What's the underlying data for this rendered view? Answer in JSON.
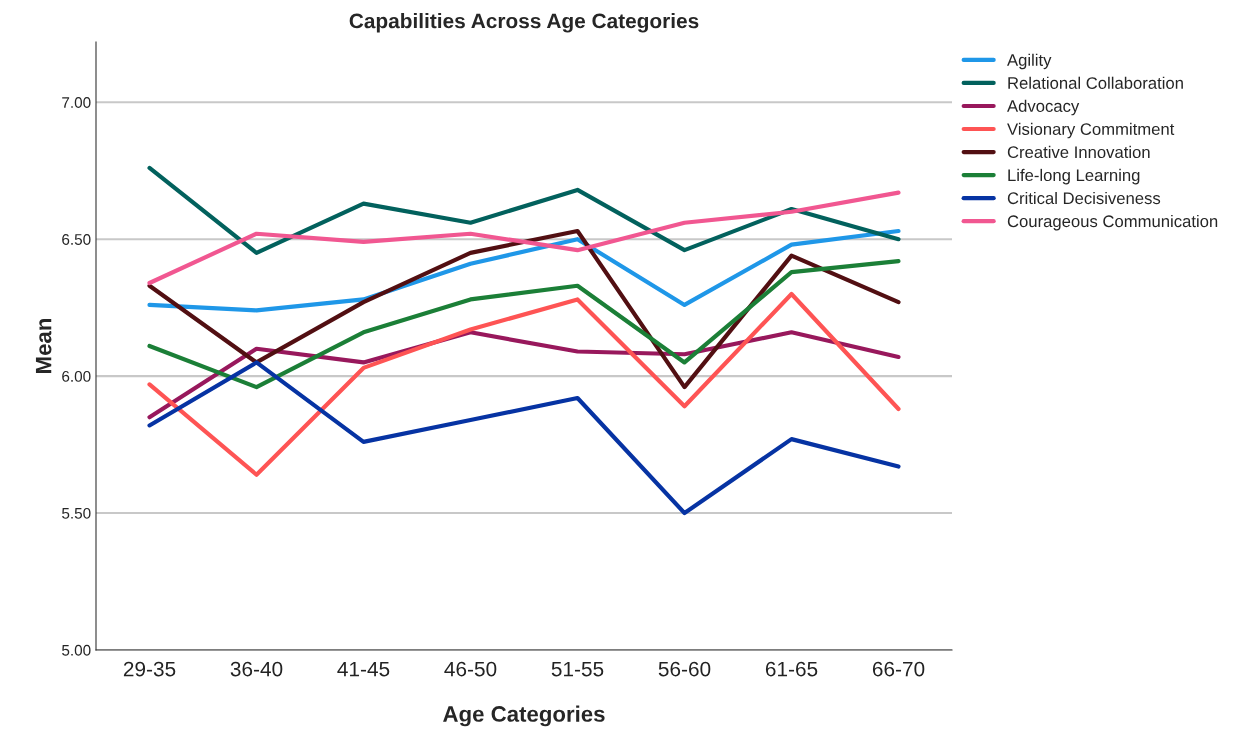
{
  "chart_data": {
    "type": "line",
    "title": "Capabilities Across Age Categories",
    "xlabel": "Age Categories",
    "ylabel": "Mean",
    "categories": [
      "29-35",
      "36-40",
      "41-45",
      "46-50",
      "51-55",
      "56-60",
      "61-65",
      "66-70"
    ],
    "ylim": [
      5.0,
      7.22
    ],
    "yticks": [
      {
        "value": 5.0,
        "label": "5.00"
      },
      {
        "value": 5.5,
        "label": "5.50"
      },
      {
        "value": 6.0,
        "label": "6.00"
      },
      {
        "value": 6.5,
        "label": "6.50"
      },
      {
        "value": 7.0,
        "label": "7.00"
      }
    ],
    "grid": "y",
    "legend": "top right",
    "marker": "none",
    "line_style": "solid",
    "series": [
      {
        "name": "Agility",
        "color": "#1f97e8",
        "values": [
          6.26,
          6.24,
          6.28,
          6.41,
          6.5,
          6.26,
          6.48,
          6.53
        ]
      },
      {
        "name": "Relational Collaboration",
        "color": "#02615d",
        "values": [
          6.76,
          6.45,
          6.63,
          6.56,
          6.68,
          6.46,
          6.61,
          6.5
        ]
      },
      {
        "name": "Advocacy",
        "color": "#98185c",
        "values": [
          5.85,
          6.1,
          6.05,
          6.16,
          6.09,
          6.08,
          6.16,
          6.07
        ]
      },
      {
        "name": "Visionary Commitment",
        "color": "#fe5454",
        "values": [
          5.97,
          5.64,
          6.03,
          6.17,
          6.28,
          5.89,
          6.3,
          5.88
        ]
      },
      {
        "name": "Creative Innovation",
        "color": "#520f12",
        "values": [
          6.33,
          6.05,
          6.27,
          6.45,
          6.53,
          5.96,
          6.44,
          6.27
        ]
      },
      {
        "name": "Life-long Learning",
        "color": "#1b7f37",
        "values": [
          6.11,
          5.96,
          6.16,
          6.28,
          6.33,
          6.05,
          6.38,
          6.42
        ]
      },
      {
        "name": "Critical Decisiveness",
        "color": "#0633a3",
        "values": [
          5.82,
          6.05,
          5.76,
          5.84,
          5.92,
          5.5,
          5.77,
          5.67
        ]
      },
      {
        "name": "Courageous Communication",
        "color": "#f15791",
        "values": [
          6.34,
          6.52,
          6.49,
          6.52,
          6.46,
          6.56,
          6.6,
          6.67
        ]
      }
    ]
  }
}
